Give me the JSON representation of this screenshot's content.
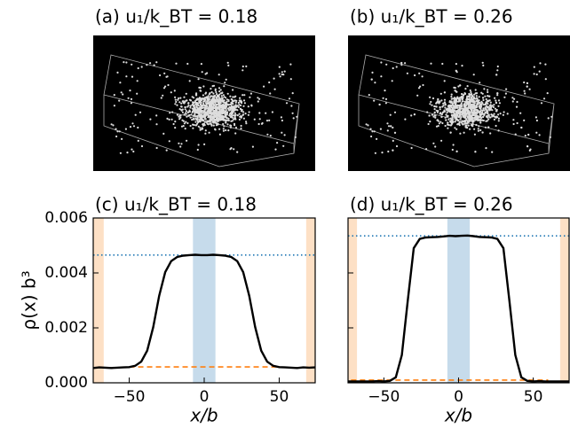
{
  "chart_data": [
    {
      "type": "image",
      "title": "(a) u₁/k_BT = 0.18",
      "spread": 0.18
    },
    {
      "type": "image",
      "title": "(b) u₁/k_BT = 0.26",
      "spread": 0.26
    },
    {
      "type": "line",
      "title": "(c) u₁/k_BT = 0.18",
      "ylabel": "ρ(x) b³",
      "xlabel": "x/b",
      "xlim": [
        -74,
        74
      ],
      "ylim": [
        0,
        0.006
      ],
      "xticks": [
        {
          "value": -50,
          "label": "−50"
        },
        0,
        50
      ],
      "yticks": [
        {
          "value": 0,
          "label": "0.000"
        },
        {
          "value": 0.002,
          "label": "0.002"
        },
        {
          "value": 0.004,
          "label": "0.004"
        },
        {
          "value": 0.006,
          "label": "0.006"
        }
      ],
      "show_ytick_labels": true,
      "vspans": [
        {
          "x": [
            -74,
            -67
          ],
          "color": "#fde0c5"
        },
        {
          "x": [
            68,
            74
          ],
          "color": "#fde0c5"
        },
        {
          "x": [
            -7.5,
            7.5
          ],
          "color": "#c6dbeb"
        }
      ],
      "hlines": [
        {
          "y": 0.00465,
          "x": [
            -74,
            74
          ],
          "style": "dotted",
          "color": "#1f77b4"
        },
        {
          "y": 0.00058,
          "x": [
            -50,
            50
          ],
          "style": "dashed",
          "color": "#ff7f0e"
        }
      ],
      "series": [
        {
          "color": "#000000",
          "x": [
            -74,
            -70,
            -66,
            -62,
            -58,
            -54,
            -50,
            -46,
            -42,
            -38,
            -34,
            -30,
            -26,
            -22,
            -18,
            -14,
            -10,
            -6,
            -2,
            2,
            6,
            10,
            14,
            18,
            22,
            26,
            30,
            34,
            38,
            42,
            46,
            50,
            54,
            58,
            62,
            66,
            70,
            74
          ],
          "values": [
            0.00054,
            0.00056,
            0.00055,
            0.00054,
            0.00055,
            0.00056,
            0.00057,
            0.00062,
            0.00077,
            0.00117,
            0.00203,
            0.00317,
            0.00403,
            0.00443,
            0.00458,
            0.00463,
            0.00465,
            0.00466,
            0.00465,
            0.00465,
            0.00466,
            0.00465,
            0.00463,
            0.00458,
            0.00443,
            0.00403,
            0.00317,
            0.00203,
            0.00117,
            0.00077,
            0.00062,
            0.00057,
            0.00056,
            0.00055,
            0.00054,
            0.00056,
            0.00055,
            0.00056
          ]
        }
      ]
    },
    {
      "type": "line",
      "title": "(d) u₁/k_BT = 0.26",
      "xlabel": "x/b",
      "xlim": [
        -74,
        74
      ],
      "ylim": [
        0,
        0.006
      ],
      "xticks": [
        {
          "value": -50,
          "label": "−50"
        },
        0,
        50
      ],
      "yticks": [
        0,
        0.002,
        0.004,
        0.006
      ],
      "show_ytick_labels": false,
      "vspans": [
        {
          "x": [
            -74,
            -68
          ],
          "color": "#fde0c5"
        },
        {
          "x": [
            68,
            74
          ],
          "color": "#fde0c5"
        },
        {
          "x": [
            -7.5,
            7.5
          ],
          "color": "#c6dbeb"
        }
      ],
      "hlines": [
        {
          "y": 0.00535,
          "x": [
            -74,
            74
          ],
          "style": "dotted",
          "color": "#1f77b4"
        },
        {
          "y": 0.0001,
          "x": [
            -72,
            60
          ],
          "style": "dashed",
          "color": "#ff7f0e"
        }
      ],
      "series": [
        {
          "color": "#000000",
          "x": [
            -74,
            -70,
            -66,
            -62,
            -58,
            -54,
            -50,
            -46,
            -42,
            -38,
            -34,
            -30,
            -26,
            -22,
            -18,
            -14,
            -10,
            -6,
            -2,
            2,
            6,
            10,
            14,
            18,
            22,
            26,
            30,
            34,
            38,
            42,
            46,
            50,
            54,
            58,
            62,
            66,
            70,
            74
          ],
          "values": [
            5e-05,
            5e-05,
            5e-05,
            5e-05,
            5e-05,
            6e-05,
            5e-05,
            7e-05,
            0.0002,
            0.00101,
            0.003,
            0.0049,
            0.00524,
            0.00529,
            0.0053,
            0.00531,
            0.00533,
            0.00535,
            0.00534,
            0.00535,
            0.00536,
            0.00534,
            0.00531,
            0.0053,
            0.00529,
            0.00524,
            0.0049,
            0.003,
            0.00101,
            0.0002,
            7e-05,
            5e-05,
            6e-05,
            5e-05,
            5e-05,
            5e-05,
            5e-05,
            5e-05
          ]
        }
      ]
    }
  ]
}
